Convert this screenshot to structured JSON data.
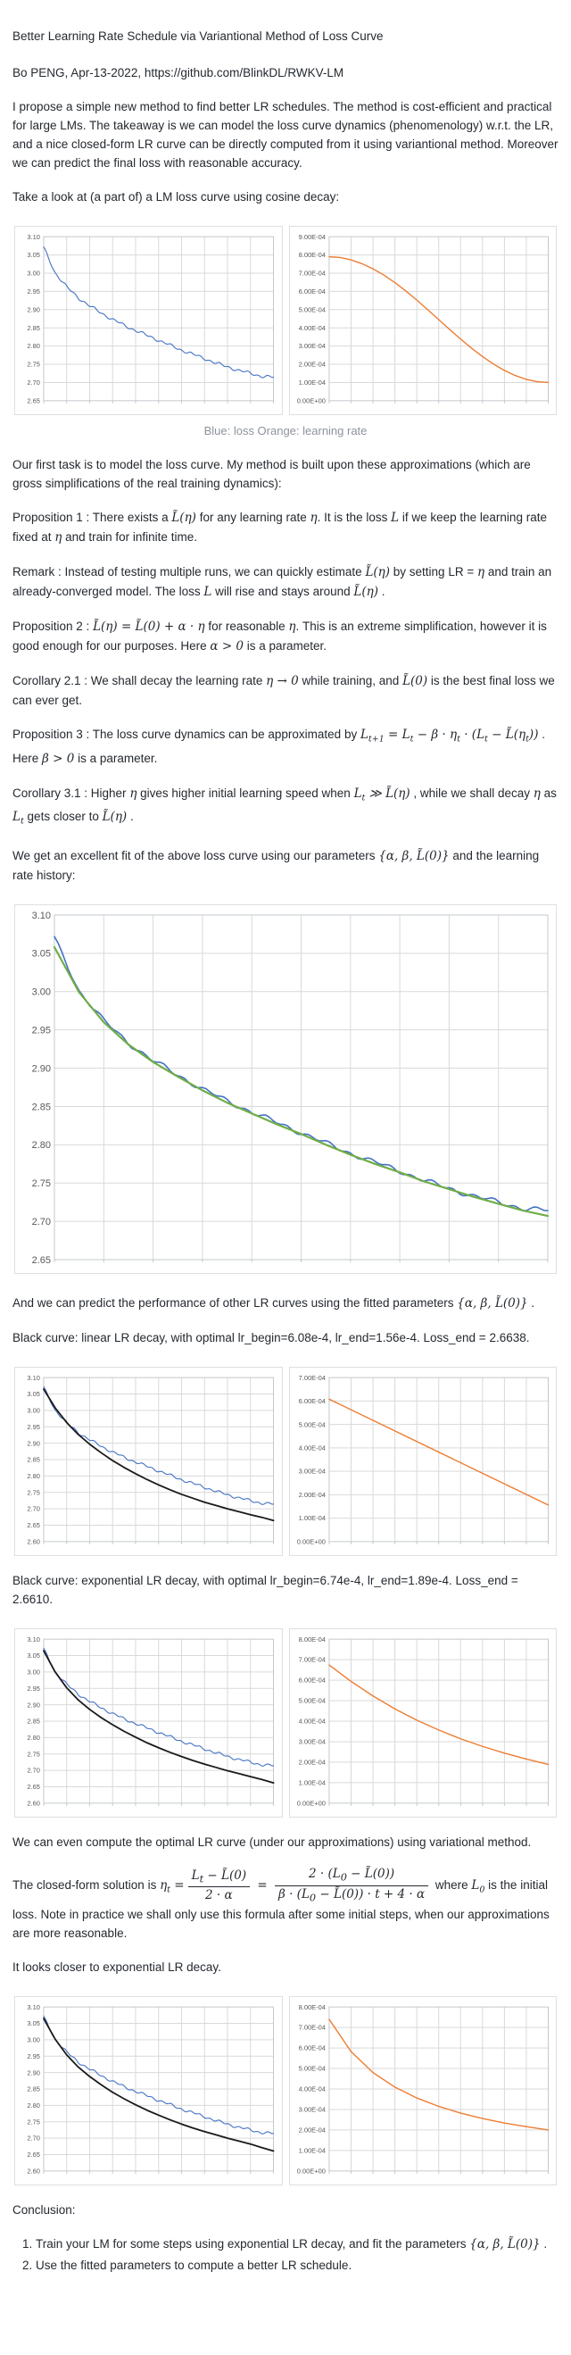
{
  "header": {
    "title": "Better Learning Rate Schedule via Variantional Method of Loss Curve",
    "byline": "Bo PENG, Apr-13-2022, https://github.com/BlinkDL/RWKV-LM"
  },
  "intro": "I propose a simple new method to find better LR schedules. The method is cost-efficient and practical for large LMs. The takeaway is we can model the loss curve dynamics (phenomenology) w.r.t. the LR, and a nice closed-form LR curve can be directly computed from it using variantional method. Moreover we can predict the final loss with reasonable accuracy.",
  "cosine_intro": "Take a look at (a part of) a LM loss curve using cosine decay:",
  "caption": "Blue: loss Orange: learning rate",
  "model_intro": "Our first task is to model the loss curve. My method is built upon these approximations (which are gross simplifications of the real training dynamics):",
  "prop1": [
    {
      "t": "text",
      "s": "Proposition 1 : There exists a "
    },
    {
      "t": "math",
      "s": "L̃(η)"
    },
    {
      "t": "text",
      "s": " for any learning rate "
    },
    {
      "t": "math",
      "s": "η"
    },
    {
      "t": "text",
      "s": ". It is the loss "
    },
    {
      "t": "math",
      "s": "L"
    },
    {
      "t": "text",
      "s": " if we keep the learning rate fixed at "
    },
    {
      "t": "math",
      "s": "η"
    },
    {
      "t": "text",
      "s": " and train for infinite time."
    }
  ],
  "remark": [
    {
      "t": "text",
      "s": "Remark : Instead of testing multiple runs, we can quickly estimate "
    },
    {
      "t": "math",
      "s": "L̃(η)"
    },
    {
      "t": "text",
      "s": " by setting LR = "
    },
    {
      "t": "math",
      "s": "η"
    },
    {
      "t": "text",
      "s": " and train an already-converged model. The loss "
    },
    {
      "t": "math",
      "s": "L"
    },
    {
      "t": "text",
      "s": " will rise and stays around "
    },
    {
      "t": "math",
      "s": "L̃(η)"
    },
    {
      "t": "text",
      "s": " ."
    }
  ],
  "prop2": [
    {
      "t": "text",
      "s": "Proposition 2 : "
    },
    {
      "t": "math",
      "s": "L̃(η) = L̃(0) + α · η"
    },
    {
      "t": "text",
      "s": " for reasonable "
    },
    {
      "t": "math",
      "s": "η"
    },
    {
      "t": "text",
      "s": ". This is an extreme simplification, however it is good enough for our purposes. Here "
    },
    {
      "t": "math",
      "s": "α > 0"
    },
    {
      "t": "text",
      "s": " is a parameter."
    }
  ],
  "cor21": [
    {
      "t": "text",
      "s": "Corollary 2.1 : We shall decay the learning rate "
    },
    {
      "t": "math",
      "s": "η → 0"
    },
    {
      "t": "text",
      "s": " while training, and "
    },
    {
      "t": "math",
      "s": "L̃(0)"
    },
    {
      "t": "text",
      "s": " is the best final loss we can ever get."
    }
  ],
  "prop3": [
    {
      "t": "text",
      "s": "Proposition 3 : The loss curve dynamics can be approximated by "
    },
    {
      "t": "math",
      "s": "L_{t+1} = L_{t} − β · η_{t} · (L_{t} − L̃(η_{t}))"
    },
    {
      "t": "text",
      "s": " . Here "
    },
    {
      "t": "math",
      "s": "β > 0"
    },
    {
      "t": "text",
      "s": " is a parameter."
    }
  ],
  "cor31": [
    {
      "t": "text",
      "s": "Corollary 3.1 : Higher "
    },
    {
      "t": "math",
      "s": "η"
    },
    {
      "t": "text",
      "s": " gives higher initial learning speed when "
    },
    {
      "t": "math",
      "s": "L_{t} ≫ L̃(η)"
    },
    {
      "t": "text",
      "s": " , while we shall decay "
    },
    {
      "t": "math",
      "s": "η"
    },
    {
      "t": "text",
      "s": " as "
    },
    {
      "t": "math",
      "s": "L_{t}"
    },
    {
      "t": "text",
      "s": " gets closer to "
    },
    {
      "t": "math",
      "s": "L̃(η)"
    },
    {
      "t": "text",
      "s": " ."
    }
  ],
  "fit_intro": [
    {
      "t": "text",
      "s": "We get an excellent fit of the above loss curve using our parameters "
    },
    {
      "t": "math",
      "s": "{α, β, L̃(0)}"
    },
    {
      "t": "text",
      "s": " and the learning rate history:"
    }
  ],
  "predict": [
    {
      "t": "text",
      "s": "And we can predict the performance of other LR curves using the fitted parameters "
    },
    {
      "t": "math",
      "s": "{α, β, L̃(0)}"
    },
    {
      "t": "text",
      "s": " ."
    }
  ],
  "linear_label": "Black curve: linear LR decay, with optimal lr_begin=6.08e-4, lr_end=1.56e-4. Loss_end = 2.6638.",
  "exp_label": "Black curve: exponential LR decay, with optimal lr_begin=6.74e-4, lr_end=1.89e-4. Loss_end = 2.6610.",
  "variational_intro": "We can even compute the optimal LR curve (under our approximations) using variational method.",
  "closed_form": [
    {
      "t": "text",
      "s": "The closed-form solution is "
    },
    {
      "t": "math",
      "s": "η_{t} ="
    },
    {
      "t": "frac",
      "num": "L_{t} − L̃(0)",
      "den": "2 · α"
    },
    {
      "t": "math",
      "s": " = "
    },
    {
      "t": "frac",
      "num": "2 · (L_{0} − L̃(0))",
      "den": "β · (L_{0} − L̃(0)) · t + 4 · α"
    },
    {
      "t": "text",
      "s": " where "
    },
    {
      "t": "math",
      "s": "L_{0}"
    },
    {
      "t": "text",
      "s": " is the initial loss. Note in practice we shall only use this formula after some initial steps, when our approximations are more reasonable."
    }
  ],
  "closer": "It looks closer to exponential LR decay.",
  "conclusion": {
    "heading": "Conclusion:",
    "item1": [
      {
        "t": "text",
        "s": "Train your LM for some steps using exponential LR decay, and fit the parameters "
      },
      {
        "t": "math",
        "s": "{α, β, L̃(0)}"
      },
      {
        "t": "text",
        "s": " ."
      }
    ],
    "item2": [
      {
        "t": "text",
        "s": "Use the fitted parameters to compute a better LR schedule."
      }
    ]
  },
  "colors": {
    "loss_blue": "#4472C4",
    "lr_orange": "#ED7D31",
    "fit_green": "#70AD47",
    "pred_black": "#1a1a1a",
    "grid": "#d9d9d9",
    "plot_border": "#c3c8cd",
    "tick_text": "#595959"
  },
  "chart_data": {
    "charts": [
      {
        "id": "cosine-run-loss",
        "type": "line",
        "y_ticks": [
          "3.10",
          "3.05",
          "3.00",
          "2.95",
          "2.90",
          "2.85",
          "2.80",
          "2.75",
          "2.70",
          "2.65"
        ],
        "ymax": 3.1,
        "ymin": 2.65,
        "y_unit": "",
        "x_columns": 10,
        "mleft": 32,
        "tick_font": 7.5,
        "series": [
          {
            "name": "loss (cosine LR run)",
            "color": "#4472C4",
            "width": 1.1,
            "noise": 0.005,
            "y": [
              3.07,
              3.001,
              2.962,
              2.933,
              2.91,
              2.891,
              2.873,
              2.857,
              2.843,
              2.829,
              2.816,
              2.802,
              2.789,
              2.777,
              2.766,
              2.753,
              2.743,
              2.733,
              2.725,
              2.717,
              2.714
            ]
          }
        ]
      },
      {
        "id": "cosine-lr",
        "type": "line",
        "y_ticks": [
          "9.00E-04",
          "8.00E-04",
          "7.00E-04",
          "6.00E-04",
          "5.00E-04",
          "4.00E-04",
          "3.00E-04",
          "2.00E-04",
          "1.00E-04",
          "0.00E+00"
        ],
        "ymax": 9,
        "ymin": 0,
        "y_unit": "1e-4",
        "x_columns": 10,
        "mleft": 44,
        "tick_font": 7.5,
        "series": [
          {
            "name": "learning rate (cosine decay)",
            "color": "#ED7D31",
            "width": 1.4,
            "noise": 0,
            "y": [
              7.9,
              7.86,
              7.73,
              7.52,
              7.24,
              6.89,
              6.48,
              6.02,
              5.52,
              4.99,
              4.45,
              3.91,
              3.38,
              2.88,
              2.42,
              2.01,
              1.66,
              1.38,
              1.17,
              1.04,
              1.0
            ]
          }
        ]
      },
      {
        "id": "fit-of-loss-curve",
        "type": "line",
        "y_ticks": [
          "3.10",
          "3.05",
          "3.00",
          "2.95",
          "2.90",
          "2.85",
          "2.80",
          "2.75",
          "2.70",
          "2.65"
        ],
        "ymax": 3.1,
        "ymin": 2.65,
        "y_unit": "",
        "x_columns": 10,
        "mleft": 44,
        "tick_font": 11,
        "series": [
          {
            "name": "loss (cosine LR run)",
            "color": "#4472C4",
            "width": 1.6,
            "noise": 0.004,
            "y": [
              3.07,
              3.001,
              2.962,
              2.933,
              2.91,
              2.891,
              2.873,
              2.857,
              2.843,
              2.829,
              2.816,
              2.802,
              2.789,
              2.777,
              2.766,
              2.753,
              2.743,
              2.733,
              2.725,
              2.717,
              2.714
            ]
          },
          {
            "name": "model fit",
            "color": "#70AD47",
            "width": 2.2,
            "noise": 0,
            "y": [
              3.058,
              2.999,
              2.96,
              2.931,
              2.908,
              2.889,
              2.871,
              2.855,
              2.841,
              2.827,
              2.814,
              2.8,
              2.787,
              2.775,
              2.764,
              2.752,
              2.742,
              2.732,
              2.723,
              2.714,
              2.707
            ]
          }
        ]
      },
      {
        "id": "linear-decay-loss",
        "type": "line",
        "y_ticks": [
          "3.10",
          "3.05",
          "3.00",
          "2.95",
          "2.90",
          "2.85",
          "2.80",
          "2.75",
          "2.70",
          "2.65",
          "2.60"
        ],
        "ymax": 3.1,
        "ymin": 2.6,
        "y_unit": "",
        "x_columns": 10,
        "mleft": 32,
        "tick_font": 7.5,
        "series": [
          {
            "name": "loss (cosine LR run)",
            "color": "#4472C4",
            "width": 1.1,
            "noise": 0.005,
            "y": [
              3.07,
              3.001,
              2.962,
              2.933,
              2.91,
              2.891,
              2.873,
              2.857,
              2.843,
              2.829,
              2.816,
              2.802,
              2.789,
              2.777,
              2.766,
              2.753,
              2.743,
              2.733,
              2.725,
              2.717,
              2.714
            ]
          },
          {
            "name": "predicted loss (linear LR decay)",
            "color": "#1a1a1a",
            "width": 1.8,
            "noise": 0,
            "y": [
              3.065,
              3.008,
              2.963,
              2.927,
              2.897,
              2.871,
              2.847,
              2.826,
              2.807,
              2.789,
              2.773,
              2.758,
              2.744,
              2.732,
              2.72,
              2.71,
              2.7,
              2.691,
              2.682,
              2.674,
              2.664
            ]
          }
        ]
      },
      {
        "id": "linear-decay-lr",
        "type": "line",
        "y_ticks": [
          "7.00E-04",
          "6.00E-04",
          "5.00E-04",
          "4.00E-04",
          "3.00E-04",
          "2.00E-04",
          "1.00E-04",
          "0.00E+00"
        ],
        "ymax": 7,
        "ymin": 0,
        "y_unit": "1e-4",
        "x_columns": 10,
        "mleft": 44,
        "tick_font": 7.5,
        "series": [
          {
            "name": "learning rate (linear decay 6.08e-4 to 1.56e-4)",
            "color": "#ED7D31",
            "width": 1.4,
            "noise": 0,
            "y": [
              6.08,
              1.56
            ]
          }
        ]
      },
      {
        "id": "exp-decay-loss",
        "type": "line",
        "y_ticks": [
          "3.10",
          "3.05",
          "3.00",
          "2.95",
          "2.90",
          "2.85",
          "2.80",
          "2.75",
          "2.70",
          "2.65",
          "2.60"
        ],
        "ymax": 3.1,
        "ymin": 2.6,
        "y_unit": "",
        "x_columns": 10,
        "mleft": 32,
        "tick_font": 7.5,
        "series": [
          {
            "name": "loss (cosine LR run)",
            "color": "#4472C4",
            "width": 1.1,
            "noise": 0.005,
            "y": [
              3.07,
              3.001,
              2.962,
              2.933,
              2.91,
              2.891,
              2.873,
              2.857,
              2.843,
              2.829,
              2.816,
              2.802,
              2.789,
              2.777,
              2.766,
              2.753,
              2.743,
              2.733,
              2.725,
              2.717,
              2.714
            ]
          },
          {
            "name": "predicted loss (exponential LR decay)",
            "color": "#1a1a1a",
            "width": 1.8,
            "noise": 0,
            "y": [
              3.065,
              3.0,
              2.952,
              2.915,
              2.886,
              2.861,
              2.839,
              2.819,
              2.801,
              2.784,
              2.769,
              2.755,
              2.742,
              2.73,
              2.719,
              2.709,
              2.699,
              2.69,
              2.681,
              2.672,
              2.662
            ]
          }
        ]
      },
      {
        "id": "exp-decay-lr",
        "type": "line",
        "y_ticks": [
          "8.00E-04",
          "7.00E-04",
          "6.00E-04",
          "5.00E-04",
          "4.00E-04",
          "3.00E-04",
          "2.00E-04",
          "1.00E-04",
          "0.00E+00"
        ],
        "ymax": 8,
        "ymin": 0,
        "y_unit": "1e-4",
        "x_columns": 10,
        "mleft": 44,
        "tick_font": 7.5,
        "series": [
          {
            "name": "learning rate (exponential decay 6.74e-4 to 1.89e-4)",
            "color": "#ED7D31",
            "width": 1.4,
            "noise": 0,
            "y": [
              6.74,
              5.94,
              5.23,
              4.6,
              4.05,
              3.57,
              3.14,
              2.77,
              2.44,
              2.15,
              1.89
            ]
          }
        ]
      },
      {
        "id": "variational-loss",
        "type": "line",
        "y_ticks": [
          "3.10",
          "3.05",
          "3.00",
          "2.95",
          "2.90",
          "2.85",
          "2.80",
          "2.75",
          "2.70",
          "2.65",
          "2.60"
        ],
        "ymax": 3.1,
        "ymin": 2.6,
        "y_unit": "",
        "x_columns": 10,
        "mleft": 32,
        "tick_font": 7.5,
        "series": [
          {
            "name": "loss (cosine LR run)",
            "color": "#4472C4",
            "width": 1.1,
            "noise": 0.005,
            "y": [
              3.07,
              3.001,
              2.962,
              2.933,
              2.91,
              2.891,
              2.873,
              2.857,
              2.843,
              2.829,
              2.816,
              2.802,
              2.789,
              2.777,
              2.766,
              2.753,
              2.743,
              2.733,
              2.725,
              2.717,
              2.714
            ]
          },
          {
            "name": "predicted loss (variational optimal LR)",
            "color": "#1a1a1a",
            "width": 1.8,
            "noise": 0,
            "y": [
              3.065,
              3.002,
              2.954,
              2.917,
              2.888,
              2.863,
              2.84,
              2.82,
              2.802,
              2.785,
              2.77,
              2.756,
              2.743,
              2.731,
              2.72,
              2.71,
              2.7,
              2.691,
              2.682,
              2.671,
              2.661
            ]
          }
        ]
      },
      {
        "id": "variational-lr",
        "type": "line",
        "y_ticks": [
          "8.00E-04",
          "7.00E-04",
          "6.00E-04",
          "5.00E-04",
          "4.00E-04",
          "3.00E-04",
          "2.00E-04",
          "1.00E-04",
          "0.00E+00"
        ],
        "ymax": 8,
        "ymin": 0,
        "y_unit": "1e-4",
        "x_columns": 10,
        "mleft": 44,
        "tick_font": 7.5,
        "series": [
          {
            "name": "learning rate (variational closed-form)",
            "color": "#ED7D31",
            "width": 1.4,
            "noise": 0,
            "y": [
              7.4,
              5.82,
              4.8,
              4.09,
              3.56,
              3.15,
              2.82,
              2.56,
              2.34,
              2.16,
              2.0
            ]
          }
        ]
      }
    ]
  }
}
